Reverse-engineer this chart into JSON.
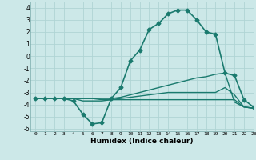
{
  "xlabel": "Humidex (Indice chaleur)",
  "ylabel": "",
  "xlim": [
    -0.5,
    23
  ],
  "ylim": [
    -6.2,
    4.5
  ],
  "background_color": "#cce8e8",
  "grid_color": "#b0d4d4",
  "line_color": "#1a7a6e",
  "xticks": [
    0,
    1,
    2,
    3,
    4,
    5,
    6,
    7,
    8,
    9,
    10,
    11,
    12,
    13,
    14,
    15,
    16,
    17,
    18,
    19,
    20,
    21,
    22,
    23
  ],
  "yticks": [
    -6,
    -5,
    -4,
    -3,
    -2,
    -1,
    0,
    1,
    2,
    3,
    4
  ],
  "series": [
    {
      "x": [
        0,
        1,
        2,
        3,
        4,
        5,
        6,
        7,
        8,
        9,
        10,
        11,
        12,
        13,
        14,
        15,
        16,
        17,
        18,
        19,
        20,
        21,
        22,
        23
      ],
      "y": [
        -3.5,
        -3.5,
        -3.5,
        -3.5,
        -3.7,
        -4.8,
        -5.6,
        -5.5,
        -3.5,
        -2.6,
        -0.4,
        0.5,
        2.2,
        2.7,
        3.5,
        3.8,
        3.8,
        3.0,
        2.0,
        1.8,
        -1.4,
        -1.6,
        -3.6,
        -4.2
      ],
      "marker": "D",
      "markersize": 2.5,
      "linewidth": 1.2
    },
    {
      "x": [
        0,
        1,
        2,
        3,
        4,
        5,
        6,
        7,
        8,
        9,
        10,
        11,
        12,
        13,
        14,
        15,
        16,
        17,
        18,
        19,
        20,
        21,
        22,
        23
      ],
      "y": [
        -3.5,
        -3.5,
        -3.5,
        -3.5,
        -3.5,
        -3.5,
        -3.5,
        -3.5,
        -3.5,
        -3.4,
        -3.2,
        -3.0,
        -2.8,
        -2.6,
        -2.4,
        -2.2,
        -2.0,
        -1.8,
        -1.7,
        -1.5,
        -1.4,
        -3.8,
        -4.2,
        -4.3
      ],
      "marker": null,
      "linewidth": 1.0
    },
    {
      "x": [
        0,
        1,
        2,
        3,
        4,
        5,
        6,
        7,
        8,
        9,
        10,
        11,
        12,
        13,
        14,
        15,
        16,
        17,
        18,
        19,
        20,
        21,
        22,
        23
      ],
      "y": [
        -3.5,
        -3.5,
        -3.5,
        -3.5,
        -3.5,
        -3.7,
        -3.7,
        -3.7,
        -3.6,
        -3.5,
        -3.4,
        -3.3,
        -3.2,
        -3.1,
        -3.0,
        -3.0,
        -3.0,
        -3.0,
        -3.0,
        -3.0,
        -2.6,
        -3.2,
        -4.2,
        -4.3
      ],
      "marker": null,
      "linewidth": 1.0
    },
    {
      "x": [
        0,
        1,
        2,
        3,
        4,
        5,
        6,
        7,
        8,
        9,
        10,
        11,
        12,
        13,
        14,
        15,
        16,
        17,
        18,
        19,
        20,
        21,
        22,
        23
      ],
      "y": [
        -3.5,
        -3.5,
        -3.5,
        -3.5,
        -3.5,
        -3.5,
        -3.5,
        -3.6,
        -3.6,
        -3.6,
        -3.6,
        -3.6,
        -3.6,
        -3.6,
        -3.6,
        -3.6,
        -3.6,
        -3.6,
        -3.6,
        -3.6,
        -3.6,
        -3.6,
        -4.2,
        -4.3
      ],
      "marker": null,
      "linewidth": 1.0
    }
  ]
}
